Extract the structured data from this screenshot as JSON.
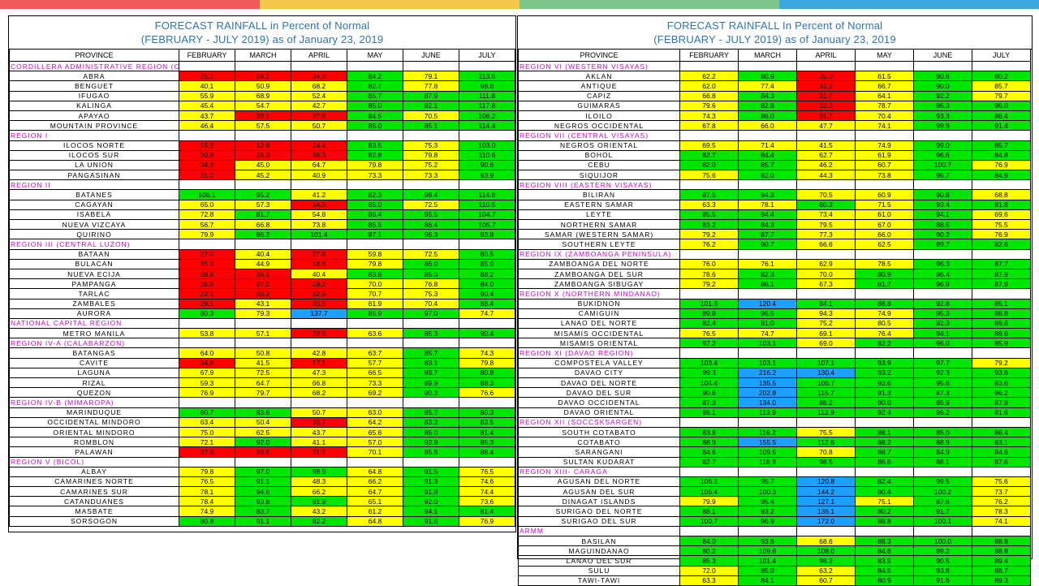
{
  "top_bar_colors": [
    "#f05a5a",
    "#f2c84b",
    "#7cc489",
    "#3aa8e0"
  ],
  "legend_colors": {
    "red": "#ff0000",
    "yellow": "#ffff00",
    "green": "#00e600",
    "blue": "#1ea0ff"
  },
  "columns": [
    "PROVINCE",
    "FEBRUARY",
    "MARCH",
    "APRIL",
    "MAY",
    "JUNE",
    "JULY"
  ],
  "left": {
    "title1": "FORECAST RAINFALL  in Percent of Normal",
    "title2": "(FEBRUARY - JULY 2019) as of January 23, 2019",
    "rows": [
      {
        "region": "CORDILLERA ADMINISTRATIVE REGION (CAR)"
      },
      {
        "p": "ABRA",
        "v": [
          "21.1",
          "24.1",
          "34.8",
          "84.2",
          "79.1",
          "113.6"
        ],
        "c": "RRRGYG"
      },
      {
        "p": "BENGUET",
        "v": [
          "40.1",
          "50.9",
          "68.2",
          "82.7",
          "77.8",
          "98.6"
        ],
        "c": "YYYGYG"
      },
      {
        "p": "IFUGAO",
        "v": [
          "55.9",
          "68.9",
          "52.4",
          "85.7",
          "87.9",
          "111.8"
        ],
        "c": "YYYGGG"
      },
      {
        "p": "KALINGA",
        "v": [
          "45.4",
          "54.7",
          "42.7",
          "85.0",
          "82.1",
          "117.8"
        ],
        "c": "YYYGGG"
      },
      {
        "p": "APAYAO",
        "v": [
          "43.7",
          "38.1",
          "37.8",
          "84.5",
          "70.5",
          "106.2"
        ],
        "c": "YRRGYG"
      },
      {
        "p": "MOUNTAIN PROVINCE",
        "v": [
          "46.4",
          "57.5",
          "50.7",
          "85.0",
          "85.1",
          "114.4"
        ],
        "c": "YYYGGG"
      },
      {
        "region": "REGION I"
      },
      {
        "p": "ILOCOS NORTE",
        "v": [
          "15.2",
          "12.6",
          "14.4",
          "83.5",
          "75.3",
          "103.0"
        ],
        "c": "RRRGYG"
      },
      {
        "p": "ILOCOS SUR",
        "v": [
          "20.8",
          "26.3",
          "36.3",
          "82.8",
          "79.8",
          "110.6"
        ],
        "c": "RRRGYG"
      },
      {
        "p": "LA UNION",
        "v": [
          "34.2",
          "45.0",
          "64.7",
          "79.8",
          "75.2",
          "90.6"
        ],
        "c": "RYYYYG"
      },
      {
        "p": "PANGASINAN",
        "v": [
          "31.0",
          "45.2",
          "40.9",
          "73.3",
          "73.3",
          "93.9"
        ],
        "c": "RYYYYG"
      },
      {
        "region": "REGION II"
      },
      {
        "p": "BATANES",
        "v": [
          "106.1",
          "95.2",
          "41.2",
          "82.3",
          "98.4",
          "114.8"
        ],
        "c": "GGYGGG"
      },
      {
        "p": "CAGAYAN",
        "v": [
          "65.0",
          "57.3",
          "34.6",
          "85.0",
          "72.5",
          "110.5"
        ],
        "c": "YYRGYG"
      },
      {
        "p": "ISABELA",
        "v": [
          "72.8",
          "81.7",
          "54.8",
          "86.4",
          "95.5",
          "104.7"
        ],
        "c": "YGYGGG"
      },
      {
        "p": "NUEVA VIZCAYA",
        "v": [
          "56.7",
          "66.8",
          "73.8",
          "85.5",
          "86.4",
          "105.7"
        ],
        "c": "YYYGGG"
      },
      {
        "p": "QUIRINO",
        "v": [
          "79.9",
          "86.2",
          "101.4",
          "87.1",
          "96.3",
          "93.8"
        ],
        "c": "YGGGGG"
      },
      {
        "region": "REGION III (CENTRAL LUZON)"
      },
      {
        "p": "BATAAN",
        "v": [
          "27.0",
          "40.4",
          "27.8",
          "59.8",
          "72.5",
          "80.5"
        ],
        "c": "RYRYYG"
      },
      {
        "p": "BULACAN",
        "v": [
          "35.5",
          "44.9",
          "18.8",
          "79.8",
          "86.0",
          "85.0"
        ],
        "c": "RYRYGG"
      },
      {
        "p": "NUEVA ECIJA",
        "v": [
          "39.9",
          "38.1",
          "40.4",
          "83.6",
          "85.0",
          "88.2"
        ],
        "c": "RRYGGG"
      },
      {
        "p": "PAMPANGA",
        "v": [
          "25.8",
          "37.0",
          "29.2",
          "70.0",
          "76.8",
          "84.0"
        ],
        "c": "RRRYYG"
      },
      {
        "p": "TARLAC",
        "v": [
          "22.1",
          "39.2",
          "32.9",
          "70.7",
          "75.3",
          "90.4"
        ],
        "c": "RRRYYG"
      },
      {
        "p": "ZAMBALES",
        "v": [
          "29.1",
          "43.1",
          "30.5",
          "61.9",
          "70.4",
          "88.4"
        ],
        "c": "RYRYYG"
      },
      {
        "p": "AURORA",
        "v": [
          "80.3",
          "79.3",
          "137.7",
          "86.9",
          "97.0",
          "74.7"
        ],
        "c": "GYBGGY"
      },
      {
        "region": "NATIONAL CAPITAL REGION"
      },
      {
        "p": "METRO MANILA",
        "v": [
          "53.8",
          "57.1",
          "23.9",
          "63.6",
          "85.3",
          "90.4"
        ],
        "c": "YYRYGG"
      },
      {
        "region": "REGION IV-A  (CALABARZON)"
      },
      {
        "p": "BATANGAS",
        "v": [
          "64.0",
          "50.8",
          "42.8",
          "63.7",
          "85.7",
          "74.3"
        ],
        "c": "YYYYGY"
      },
      {
        "p": "CAVITE",
        "v": [
          "34.8",
          "41.5",
          "17.1",
          "57.7",
          "83.1",
          "79.8"
        ],
        "c": "RYRYGY"
      },
      {
        "p": "LAGUNA",
        "v": [
          "67.9",
          "72.5",
          "47.3",
          "66.5",
          "89.7",
          "80.8"
        ],
        "c": "YYYYGG"
      },
      {
        "p": "RIZAL",
        "v": [
          "59.3",
          "64.7",
          "66.8",
          "73.3",
          "89.9",
          "88.3"
        ],
        "c": "YYYYGG"
      },
      {
        "p": "QUEZON",
        "v": [
          "76.9",
          "79.7",
          "68.2",
          "69.2",
          "90.3",
          "76.6"
        ],
        "c": "YYYYGY"
      },
      {
        "region": "REGION IV-B  (MIMAROPA)"
      },
      {
        "p": "MARINDUQUE",
        "v": [
          "80.7",
          "83.6",
          "50.7",
          "63.0",
          "85.7",
          "80.3"
        ],
        "c": "GGYYGG"
      },
      {
        "p": "OCCIDENTAL MINDORO",
        "v": [
          "63.4",
          "50.4",
          "33.7",
          "64.2",
          "83.3",
          "83.5"
        ],
        "c": "YYRYGG"
      },
      {
        "p": "ORIENTAL MINDORO",
        "v": [
          "75.0",
          "62.5",
          "43.7",
          "65.6",
          "85.0",
          "81.4"
        ],
        "c": "YYYYGG"
      },
      {
        "p": "ROMBLON",
        "v": [
          "72.1",
          "92.0",
          "41.1",
          "57.0",
          "92.8",
          "85.3"
        ],
        "c": "YGYYGG"
      },
      {
        "p": "PALAWAN",
        "v": [
          "37.9",
          "39.6",
          "31.5",
          "70.1",
          "85.8",
          "88.4"
        ],
        "c": "RRRYGG"
      },
      {
        "region": "REGION V  (BICOL)"
      },
      {
        "p": "ALBAY",
        "v": [
          "79.8",
          "97.0",
          "98.9",
          "64.8",
          "91.5",
          "76.5"
        ],
        "c": "YGGYGY"
      },
      {
        "p": "CAMARINES NORTE",
        "v": [
          "76.5",
          "91.1",
          "48.3",
          "66.2",
          "91.3",
          "74.6"
        ],
        "c": "YGYYGY"
      },
      {
        "p": "CAMARINES SUR",
        "v": [
          "78.1",
          "94.6",
          "66.2",
          "64.7",
          "91.9",
          "74.4"
        ],
        "c": "YGYYGY"
      },
      {
        "p": "CATANDUANES",
        "v": [
          "78.4",
          "93.8",
          "91.9",
          "65.1",
          "92.0",
          "73.6"
        ],
        "c": "YGGYGY"
      },
      {
        "p": "MASBATE",
        "v": [
          "74.9",
          "83.7",
          "43.2",
          "61.2",
          "94.1",
          "81.4"
        ],
        "c": "YGYYGG"
      },
      {
        "p": "SORSOGON",
        "v": [
          "80.8",
          "91.1",
          "82.2",
          "64.8",
          "91.6",
          "76.9"
        ],
        "c": "GGGYGY"
      }
    ]
  },
  "right": {
    "title1": "FORECAST RAINFALL  In Percent of Normal",
    "title2": "(FEBRUARY - JULY 2019) as of January 23, 2019",
    "rows": [
      {
        "region": "REGION VI (WESTERN VISAYAS)"
      },
      {
        "p": "AKLAN",
        "v": [
          "62.2",
          "80.9",
          "35.3",
          "61.5",
          "90.6",
          "80.2"
        ],
        "c": "YGRYGG"
      },
      {
        "p": "ANTIQUE",
        "v": [
          "62.0",
          "77.4",
          "31.2",
          "66.7",
          "90.0",
          "85.7"
        ],
        "c": "YYRYGY"
      },
      {
        "p": "CAPIZ",
        "v": [
          "66.8",
          "84.3",
          "31.7",
          "64.1",
          "92.2",
          "79.7"
        ],
        "c": "YGRYGY"
      },
      {
        "p": "GUIMARAS",
        "v": [
          "79.6",
          "82.8",
          "32.3",
          "78.7",
          "96.3",
          "96.0"
        ],
        "c": "YGRYGG"
      },
      {
        "p": "ILOILO",
        "v": [
          "74.3",
          "86.0",
          "31.7",
          "70.4",
          "93.3",
          "86.4"
        ],
        "c": "YGRYGG"
      },
      {
        "p": "NEGROS OCCIDENTAL",
        "v": [
          "67.8",
          "66.0",
          "47.7",
          "74.1",
          "99.9",
          "91.4"
        ],
        "c": "YYYYGG"
      },
      {
        "region": "REGION VII (CENTRAL VISAYAS)"
      },
      {
        "p": "NEGROS ORIENTAL",
        "v": [
          "69.5",
          "71.4",
          "41.5",
          "74.9",
          "99.0",
          "85.7"
        ],
        "c": "YYYYGG"
      },
      {
        "p": "BOHOL",
        "v": [
          "82.7",
          "84.4",
          "62.7",
          "61.9",
          "96.6",
          "84.8"
        ],
        "c": "GGYYGG"
      },
      {
        "p": "CEBU",
        "v": [
          "82.0",
          "85.7",
          "46.2",
          "60.7",
          "100.7",
          "76.9"
        ],
        "c": "GGYYGY"
      },
      {
        "p": "SIQUIJOR",
        "v": [
          "75.6",
          "82.0",
          "44.3",
          "73.8",
          "96.7",
          "84.9"
        ],
        "c": "YGYYGG"
      },
      {
        "region": "REGION VIII (EASTERN VISAYAS)"
      },
      {
        "p": "BILIRAN",
        "v": [
          "87.5",
          "94.3",
          "70.5",
          "60.9",
          "90.8",
          "68.8"
        ],
        "c": "GGYYGY"
      },
      {
        "p": "EASTERN SAMAR",
        "v": [
          "63.3",
          "78.1",
          "80.3",
          "71.5",
          "93.4",
          "81.8"
        ],
        "c": "YYGYGG"
      },
      {
        "p": "LEYTE",
        "v": [
          "85.5",
          "94.4",
          "73.4",
          "61.0",
          "94.1",
          "69.6"
        ],
        "c": "GGYYGY"
      },
      {
        "p": "NORTHERN SAMAR",
        "v": [
          "83.2",
          "84.3",
          "79.5",
          "67.0",
          "88.5",
          "75.5"
        ],
        "c": "GGYYGY"
      },
      {
        "p": "SAMAR (WESTERN SAMAR)",
        "v": [
          "79.2",
          "87.7",
          "77.3",
          "66.0",
          "90.2",
          "76.9"
        ],
        "c": "YGYYGY"
      },
      {
        "p": "SOUTHERN LEYTE",
        "v": [
          "76.2",
          "90.7",
          "66.6",
          "62.5",
          "89.7",
          "82.6"
        ],
        "c": "YGYYGG"
      },
      {
        "region": "REGION IX (ZAMBOANGA PENINSULA)"
      },
      {
        "p": "ZAMBOANGA DEL NORTE",
        "v": [
          "76.0",
          "76.1",
          "62.9",
          "78.5",
          "96.3",
          "87.7"
        ],
        "c": "YYYYGG"
      },
      {
        "p": "ZAMBOANGA DEL SUR",
        "v": [
          "78.6",
          "82.3",
          "70.0",
          "80.9",
          "96.4",
          "87.9"
        ],
        "c": "YGYGGG"
      },
      {
        "p": "ZAMBOANGA SIBUGAY",
        "v": [
          "79.2",
          "86.1",
          "67.3",
          "81.7",
          "96.9",
          "87.9"
        ],
        "c": "YGYGGG"
      },
      {
        "region": "REGION X (NORTHERN MINDANAO)"
      },
      {
        "p": "BUKIDNON",
        "v": [
          "101.3",
          "120.4",
          "84.1",
          "88.8",
          "92.8",
          "85.1"
        ],
        "c": "GBGGGG"
      },
      {
        "p": "CAMIGUIN",
        "v": [
          "89.8",
          "96.5",
          "94.3",
          "74.9",
          "95.3",
          "88.8"
        ],
        "c": "GGYYGG"
      },
      {
        "p": "LANAO DEL NORTE",
        "v": [
          "82.4",
          "91.0",
          "75.2",
          "80.5",
          "92.3",
          "89.6"
        ],
        "c": "GGYYGG"
      },
      {
        "p": "MISAMIS OCCIDENTAL",
        "v": [
          "76.5",
          "74.7",
          "69.1",
          "76.4",
          "94.1",
          "89.6"
        ],
        "c": "YYYYGG"
      },
      {
        "p": "MISAMIS ORIENTAL",
        "v": [
          "97.2",
          "103.1",
          "69.0",
          "82.2",
          "96.0",
          "85.9"
        ],
        "c": "GGYGGG"
      },
      {
        "region": "REGION XI (DAVAO REGION)"
      },
      {
        "p": "COMPOSTELA VALLEY",
        "v": [
          "103.4",
          "103.1",
          "107.1",
          "93.9",
          "97.7",
          "79.2"
        ],
        "c": "GGGGGY"
      },
      {
        "p": "DAVAO CITY",
        "v": [
          "99.3",
          "216.2",
          "130.4",
          "93.2",
          "92.3",
          "93.6"
        ],
        "c": "GBBGGG"
      },
      {
        "p": "DAVAO DEL NORTE",
        "v": [
          "104.4",
          "135.5",
          "106.7",
          "93.6",
          "95.6",
          "83.6"
        ],
        "c": "GBGGGG"
      },
      {
        "p": "DAVAO DEL SUR",
        "v": [
          "90.6",
          "202.8",
          "115.7",
          "91.3",
          "87.3",
          "96.2"
        ],
        "c": "GBGGGG"
      },
      {
        "p": "DAVAO OCCIDENTAL",
        "v": [
          "87.3",
          "134.0",
          "88.2",
          "90.0",
          "85.9",
          "87.9"
        ],
        "c": "GBGGGG"
      },
      {
        "p": "DAVAO ORIENTAL",
        "v": [
          "98.1",
          "113.9",
          "112.9",
          "92.4",
          "96.2",
          "81.6"
        ],
        "c": "GGGGGG"
      },
      {
        "region": "REGION XII (SOCCSKSARGEN)"
      },
      {
        "p": "SOUTH COTABATO",
        "v": [
          "83.8",
          "116.2",
          "75.5",
          "88.1",
          "85.0",
          "86.4"
        ],
        "c": "GGYGGG"
      },
      {
        "p": "COTABATO",
        "v": [
          "88.9",
          "155.5",
          "112.6",
          "88.2",
          "88.9",
          "83.1"
        ],
        "c": "GBGGGG"
      },
      {
        "p": "SARANGANI",
        "v": [
          "84.6",
          "109.5",
          "70.8",
          "88.7",
          "84.9",
          "84.6"
        ],
        "c": "GGYGGG"
      },
      {
        "p": "SULTAN KUDARAT",
        "v": [
          "82.7",
          "118.9",
          "98.5",
          "86.6",
          "88.1",
          "87.6"
        ],
        "c": "GGGGGG"
      },
      {
        "region": "REGION XIII- CARAGA"
      },
      {
        "p": "AGUSAN DEL NORTE",
        "v": [
          "106.1",
          "95.7",
          "120.8",
          "82.4",
          "99.5",
          "75.6"
        ],
        "c": "GGBGGY"
      },
      {
        "p": "AGUSAN DEL SUR",
        "v": [
          "106.4",
          "100.3",
          "144.2",
          "90.4",
          "100.2",
          "73.7"
        ],
        "c": "GGBGGY"
      },
      {
        "p": "DINAGAT ISLANDS",
        "v": [
          "79.9",
          "95.4",
          "127.1",
          "75.1",
          "87.6",
          "76.2"
        ],
        "c": "YGBYGY"
      },
      {
        "p": "SURIGAO DEL NORTE",
        "v": [
          "88.1",
          "93.2",
          "136.1",
          "80.2",
          "91.7",
          "78.3"
        ],
        "c": "GGBGGY"
      },
      {
        "p": "SURIGAO DEL SUR",
        "v": [
          "100.7",
          "96.9",
          "172.0",
          "88.8",
          "100.1",
          "74.1"
        ],
        "c": "GGBGGY"
      },
      {
        "region": "ARMM"
      },
      {
        "p": "BASILAN",
        "v": [
          "84.0",
          "93.6",
          "68.6",
          "88.3",
          "100.0",
          "88.8"
        ],
        "c": "GGYGGG"
      },
      {
        "p": "MAGUINDANAO",
        "v": [
          "80.2",
          "109.6",
          "108.0",
          "84.6",
          "89.2",
          "88.8"
        ],
        "c": "GGGGGG"
      },
      {
        "p": "LANAO DEL SUR",
        "v": [
          "85.3",
          "101.4",
          "98.2",
          "83.5",
          "90.5",
          "89.4"
        ],
        "c": "GGGGGG"
      },
      {
        "p": "SULU",
        "v": [
          "72.0",
          "85.0",
          "63.2",
          "84.5",
          "93.8",
          "88.7"
        ],
        "c": "YGYGGG"
      },
      {
        "p": "TAWI-TAWI",
        "v": [
          "63.3",
          "84.1",
          "60.7",
          "80.9",
          "91.6",
          "89.3"
        ],
        "c": "YGYGGG"
      }
    ]
  }
}
